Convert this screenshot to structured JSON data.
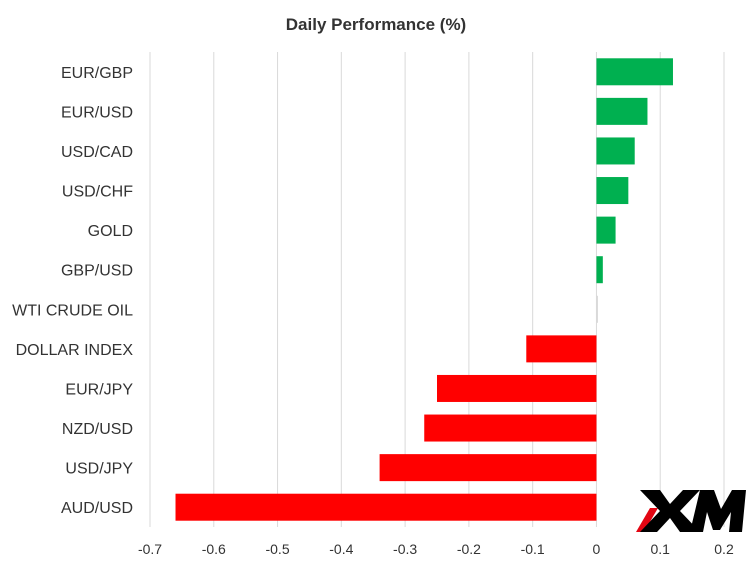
{
  "chart_data": {
    "type": "bar",
    "orientation": "horizontal",
    "title": "Daily Performance (%)",
    "xlabel": "",
    "ylabel": "",
    "categories": [
      "EUR/GBP",
      "EUR/USD",
      "USD/CAD",
      "USD/CHF",
      "GOLD",
      "GBP/USD",
      "WTI CRUDE OIL",
      "DOLLAR INDEX",
      "EUR/JPY",
      "NZD/USD",
      "USD/JPY",
      "AUD/USD"
    ],
    "values": [
      0.12,
      0.08,
      0.06,
      0.05,
      0.03,
      0.01,
      0.0,
      -0.11,
      -0.25,
      -0.27,
      -0.34,
      -0.66
    ],
    "xlim": [
      -0.7,
      0.2
    ],
    "xticks": [
      "-0.7",
      "-0.6",
      "-0.5",
      "-0.4",
      "-0.3",
      "-0.2",
      "-0.1",
      "0",
      "0.1",
      "0.2"
    ],
    "grid": "vertical",
    "legend": "none",
    "colors": {
      "positive": "#00b050",
      "negative": "#ff0000",
      "grid": "#d9d9d9",
      "text": "#333333"
    }
  },
  "logo": {
    "text": "XM",
    "colors": {
      "mark": "#000000",
      "accent": "#e30613"
    }
  }
}
